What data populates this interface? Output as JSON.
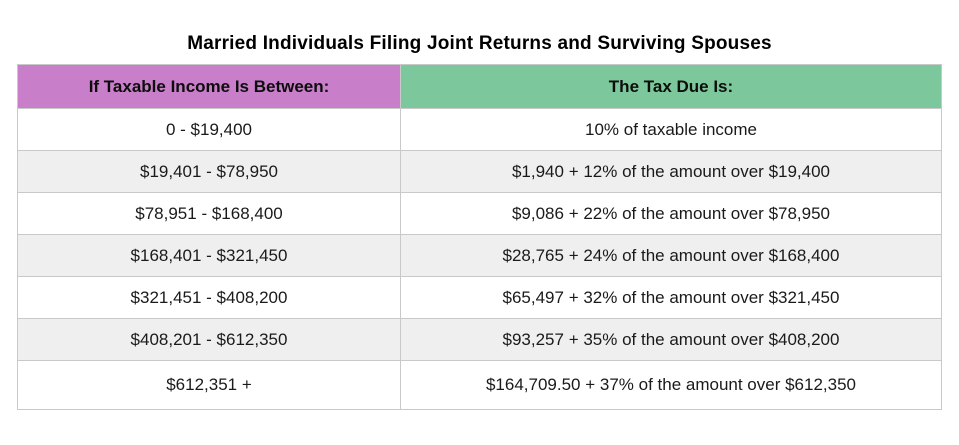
{
  "page_title": "Married Individuals Filing Joint Returns and Surviving Spouses",
  "table": {
    "headers": [
      {
        "label": "If Taxable Income Is Between:"
      },
      {
        "label": "The Tax Due Is:"
      }
    ],
    "rows": [
      {
        "range": "0 - $19,400",
        "tax": "10% of taxable income"
      },
      {
        "range": "$19,401 - $78,950",
        "tax": "$1,940 + 12% of the amount over $19,400"
      },
      {
        "range": "$78,951 - $168,400",
        "tax": "$9,086 + 22% of the amount over $78,950"
      },
      {
        "range": "$168,401 - $321,450",
        "tax": "$28,765 + 24% of the amount over $168,400"
      },
      {
        "range": "$321,451 - $408,200",
        "tax": "$65,497 + 32% of the amount over $321,450"
      },
      {
        "range": "$408,201 - $612,350",
        "tax": "$93,257 + 35% of the amount over $408,200"
      },
      {
        "range": "$612,351 +",
        "tax": "$164,709.50 + 37% of the amount over $612,350"
      }
    ]
  },
  "colors": {
    "income_header_bg": "#C87EC8",
    "tax_header_bg": "#7CC79B",
    "row_alt_bg": "#EFEFEF",
    "border": "#C9C9C9",
    "text": "#1A1A1A"
  }
}
